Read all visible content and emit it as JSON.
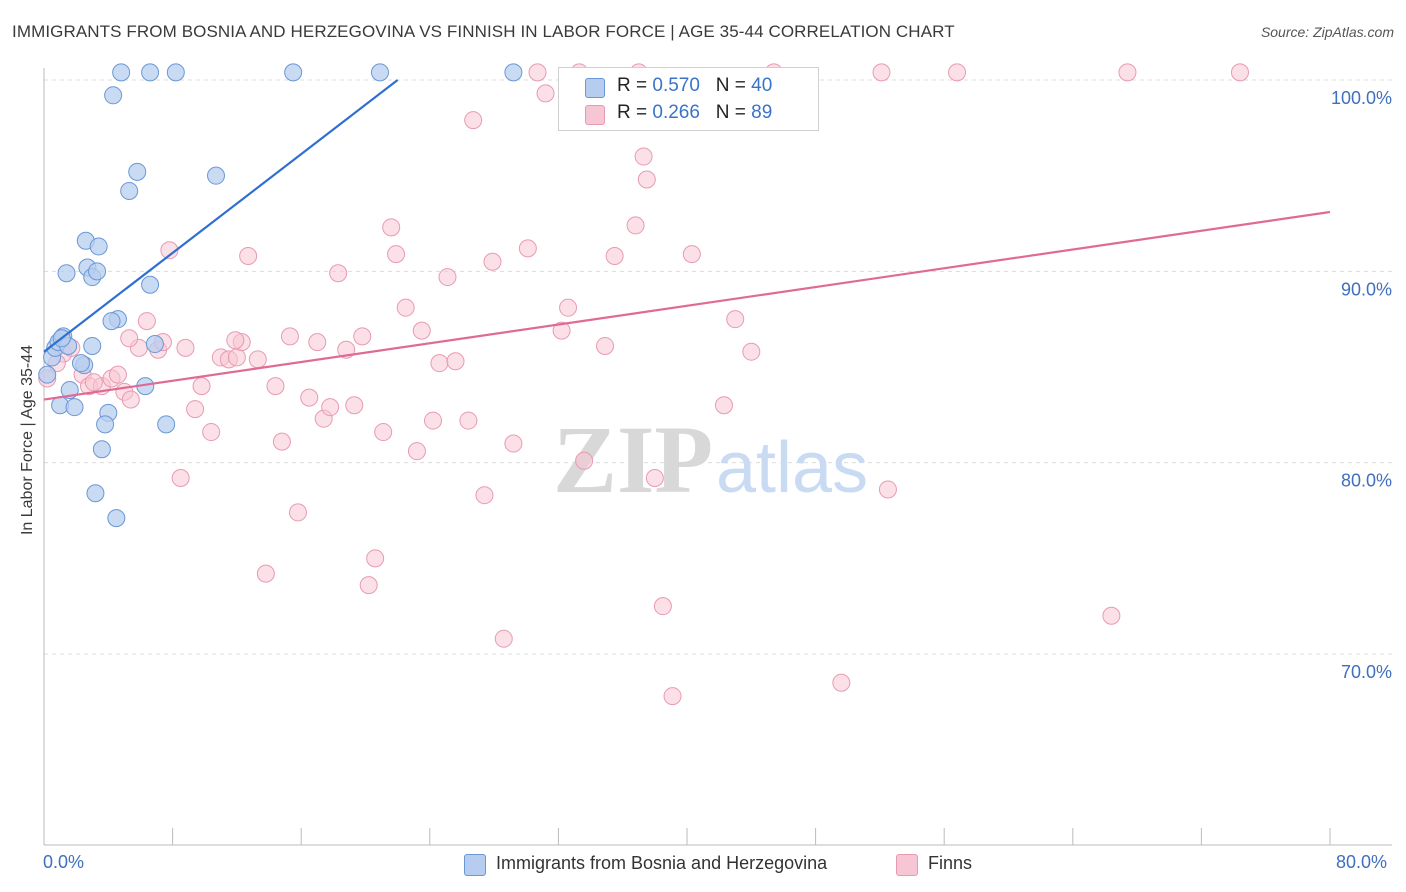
{
  "title": "IMMIGRANTS FROM BOSNIA AND HERZEGOVINA VS FINNISH IN LABOR FORCE | AGE 35-44 CORRELATION CHART",
  "source": "Source: ZipAtlas.com",
  "watermark": {
    "zip": "ZIP",
    "atlas": "atlas"
  },
  "colors": {
    "series1_fill": "#b7cdef",
    "series1_stroke": "#6b97d6",
    "series1_line": "#2f6fcf",
    "series2_fill": "#f7c6d4",
    "series2_stroke": "#e99ab3",
    "series2_line": "#e06a96",
    "tick_text": "#3f6fbf",
    "grid": "#dcdcdc"
  },
  "legend": {
    "rows": [
      {
        "r_label": "R = ",
        "r_value": "0.570",
        "n_label": "N = ",
        "n_value": "40"
      },
      {
        "r_label": "R = ",
        "r_value": "0.266",
        "n_label": "N = ",
        "n_value": "89"
      }
    ]
  },
  "bottom_legend": {
    "series1": "Immigrants from Bosnia and Herzegovina",
    "series2": "Finns"
  },
  "chart_data": {
    "type": "scatter",
    "title": "IMMIGRANTS FROM BOSNIA AND HERZEGOVINA VS FINNISH IN LABOR FORCE | AGE 35-44 CORRELATION CHART",
    "xlabel": "",
    "ylabel": "In Labor Force | Age 35-44",
    "xlim": [
      0,
      80
    ],
    "ylim": [
      60,
      101
    ],
    "x_tick_labels": [
      {
        "value": 0,
        "label": "0.0%"
      },
      {
        "value": 80,
        "label": "80.0%"
      }
    ],
    "y_tick_labels": [
      {
        "value": 100,
        "label": "100.0%"
      },
      {
        "value": 90,
        "label": "90.0%"
      },
      {
        "value": 80,
        "label": "80.0%"
      },
      {
        "value": 70,
        "label": "70.0%"
      }
    ],
    "series": [
      {
        "name": "Immigrants from Bosnia and Herzegovina",
        "R": 0.57,
        "N": 40,
        "trendline": {
          "x": [
            0,
            22.0
          ],
          "y": [
            85.8,
            100.0
          ]
        },
        "points": [
          [
            0.2,
            84.6
          ],
          [
            0.5,
            85.5
          ],
          [
            0.7,
            86.0
          ],
          [
            0.9,
            86.3
          ],
          [
            1.2,
            86.6
          ],
          [
            1.5,
            86.1
          ],
          [
            1.0,
            83.0
          ],
          [
            1.6,
            83.8
          ],
          [
            1.9,
            82.9
          ],
          [
            2.5,
            85.1
          ],
          [
            2.7,
            90.2
          ],
          [
            3.0,
            89.7
          ],
          [
            3.3,
            90.0
          ],
          [
            2.6,
            91.6
          ],
          [
            3.4,
            91.3
          ],
          [
            4.0,
            82.6
          ],
          [
            3.8,
            82.0
          ],
          [
            3.6,
            80.7
          ],
          [
            3.2,
            78.4
          ],
          [
            4.5,
            77.1
          ],
          [
            4.6,
            87.5
          ],
          [
            4.3,
            99.2
          ],
          [
            5.8,
            95.2
          ],
          [
            5.3,
            94.2
          ],
          [
            6.3,
            84.0
          ],
          [
            7.6,
            82.0
          ],
          [
            6.6,
            89.3
          ],
          [
            6.9,
            86.2
          ],
          [
            10.7,
            95.0
          ],
          [
            1.4,
            89.9
          ],
          [
            2.3,
            85.2
          ],
          [
            4.2,
            87.4
          ],
          [
            3.0,
            86.1
          ],
          [
            1.1,
            86.5
          ],
          [
            4.8,
            100.4
          ],
          [
            6.6,
            100.4
          ],
          [
            8.2,
            100.4
          ],
          [
            15.5,
            100.4
          ],
          [
            20.9,
            100.4
          ],
          [
            29.2,
            100.4
          ]
        ]
      },
      {
        "name": "Finns",
        "R": 0.266,
        "N": 89,
        "trendline": {
          "x": [
            0,
            80
          ],
          "y": [
            83.3,
            93.1
          ]
        },
        "points": [
          [
            0.2,
            84.4
          ],
          [
            1.2,
            85.7
          ],
          [
            1.7,
            86.0
          ],
          [
            2.4,
            84.6
          ],
          [
            2.8,
            84.0
          ],
          [
            3.6,
            84.0
          ],
          [
            4.2,
            84.4
          ],
          [
            4.6,
            84.6
          ],
          [
            5.0,
            83.7
          ],
          [
            5.4,
            83.3
          ],
          [
            5.9,
            86.0
          ],
          [
            6.4,
            87.4
          ],
          [
            7.1,
            85.9
          ],
          [
            7.4,
            86.3
          ],
          [
            7.8,
            91.1
          ],
          [
            8.5,
            79.2
          ],
          [
            8.8,
            86.0
          ],
          [
            9.4,
            82.8
          ],
          [
            9.8,
            84.0
          ],
          [
            10.4,
            81.6
          ],
          [
            11.0,
            85.5
          ],
          [
            11.5,
            85.4
          ],
          [
            12.0,
            85.5
          ],
          [
            12.3,
            86.3
          ],
          [
            12.7,
            90.8
          ],
          [
            13.3,
            85.4
          ],
          [
            13.8,
            74.2
          ],
          [
            14.4,
            84.0
          ],
          [
            14.8,
            81.1
          ],
          [
            15.3,
            86.6
          ],
          [
            15.8,
            77.4
          ],
          [
            16.5,
            83.4
          ],
          [
            17.0,
            86.3
          ],
          [
            17.4,
            82.3
          ],
          [
            17.8,
            82.9
          ],
          [
            18.3,
            89.9
          ],
          [
            18.8,
            85.9
          ],
          [
            19.3,
            83.0
          ],
          [
            19.8,
            86.6
          ],
          [
            20.2,
            73.6
          ],
          [
            20.6,
            75.0
          ],
          [
            21.1,
            81.6
          ],
          [
            21.6,
            92.3
          ],
          [
            21.9,
            90.9
          ],
          [
            22.5,
            88.1
          ],
          [
            23.2,
            80.6
          ],
          [
            23.5,
            86.9
          ],
          [
            24.2,
            82.2
          ],
          [
            24.6,
            85.2
          ],
          [
            25.1,
            89.7
          ],
          [
            25.6,
            85.3
          ],
          [
            26.4,
            82.2
          ],
          [
            26.7,
            97.9
          ],
          [
            27.4,
            78.3
          ],
          [
            27.9,
            90.5
          ],
          [
            28.6,
            70.8
          ],
          [
            29.2,
            81.0
          ],
          [
            30.1,
            91.2
          ],
          [
            31.2,
            99.3
          ],
          [
            32.2,
            86.9
          ],
          [
            32.6,
            88.1
          ],
          [
            33.6,
            80.1
          ],
          [
            34.9,
            86.1
          ],
          [
            35.5,
            90.8
          ],
          [
            36.8,
            92.4
          ],
          [
            37.3,
            96.0
          ],
          [
            37.5,
            94.8
          ],
          [
            38.0,
            79.2
          ],
          [
            38.5,
            72.5
          ],
          [
            39.1,
            67.8
          ],
          [
            40.3,
            90.9
          ],
          [
            42.3,
            83.0
          ],
          [
            43.0,
            87.5
          ],
          [
            44.0,
            85.8
          ],
          [
            49.6,
            68.5
          ],
          [
            52.5,
            78.6
          ],
          [
            66.4,
            72.0
          ],
          [
            30.7,
            100.4
          ],
          [
            33.3,
            100.4
          ],
          [
            37.0,
            100.4
          ],
          [
            45.4,
            100.4
          ],
          [
            52.1,
            100.4
          ],
          [
            56.8,
            100.4
          ],
          [
            67.4,
            100.4
          ],
          [
            74.4,
            100.4
          ],
          [
            11.9,
            86.4
          ],
          [
            5.3,
            86.5
          ],
          [
            3.1,
            84.2
          ],
          [
            0.8,
            85.2
          ]
        ]
      }
    ]
  }
}
